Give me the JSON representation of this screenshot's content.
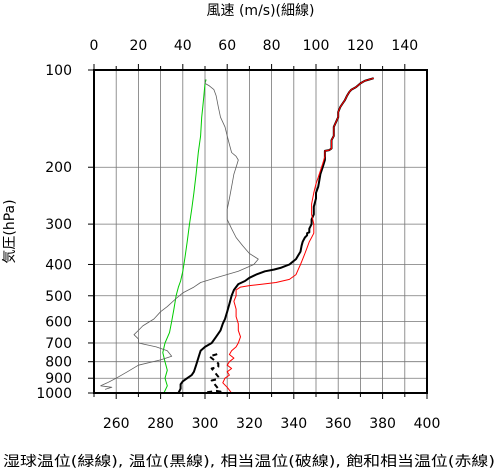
{
  "chart_data": {
    "type": "line",
    "title": "",
    "top_axis_label": "風速 (m/s)(細線)",
    "ylabel": "気圧(hPa)",
    "xlabel": "湿球温位(緑線), 温位(黒線), 相当温位(破線), 飽和相当温位(赤線)",
    "y_scale": "log",
    "y_inverted": true,
    "ylim": [
      1000,
      100
    ],
    "xlim": [
      250,
      400
    ],
    "top_xlim": [
      0,
      150
    ],
    "x_ticks": [
      260,
      280,
      300,
      320,
      340,
      360,
      380,
      400
    ],
    "top_x_ticks": [
      0,
      20,
      40,
      60,
      80,
      100,
      120,
      140
    ],
    "y_ticks": [
      100,
      200,
      300,
      400,
      500,
      600,
      700,
      800,
      900,
      1000
    ],
    "grid": true,
    "series": [
      {
        "name": "湿球温位",
        "color": "#00cc00",
        "axis": "bottom",
        "points": [
          [
            281.5,
            1000
          ],
          [
            283,
            950
          ],
          [
            282,
            900
          ],
          [
            283,
            850
          ],
          [
            282,
            800
          ],
          [
            281,
            750
          ],
          [
            282,
            700
          ],
          [
            284,
            650
          ],
          [
            285,
            600
          ],
          [
            286,
            550
          ],
          [
            287,
            500
          ],
          [
            288,
            470
          ],
          [
            289,
            450
          ],
          [
            290,
            420
          ],
          [
            291,
            380
          ],
          [
            292,
            340
          ],
          [
            293,
            300
          ],
          [
            294,
            270
          ],
          [
            295,
            240
          ],
          [
            296,
            210
          ],
          [
            297,
            180
          ],
          [
            298,
            160
          ],
          [
            298.5,
            140
          ],
          [
            299,
            130
          ],
          [
            299.5,
            120
          ],
          [
            300,
            110
          ],
          [
            300.5,
            107
          ]
        ]
      },
      {
        "name": "温位",
        "color": "#000000",
        "axis": "bottom",
        "points": [
          [
            288,
            1000
          ],
          [
            289,
            970
          ],
          [
            289,
            940
          ],
          [
            290,
            920
          ],
          [
            292,
            900
          ],
          [
            294,
            880
          ],
          [
            295,
            860
          ],
          [
            296,
            820
          ],
          [
            297,
            780
          ],
          [
            297.5,
            760
          ],
          [
            298,
            740
          ],
          [
            300,
            720
          ],
          [
            303,
            700
          ],
          [
            305,
            670
          ],
          [
            307,
            640
          ],
          [
            308,
            610
          ],
          [
            309,
            590
          ],
          [
            310,
            560
          ],
          [
            311,
            530
          ],
          [
            312,
            500
          ],
          [
            313,
            480
          ],
          [
            315,
            460
          ],
          [
            318,
            450
          ],
          [
            320,
            440
          ],
          [
            323,
            430
          ],
          [
            327,
            420
          ],
          [
            331,
            415
          ],
          [
            334,
            410
          ],
          [
            336,
            405
          ],
          [
            338,
            400
          ],
          [
            339,
            395
          ],
          [
            340,
            390
          ],
          [
            341,
            385
          ],
          [
            342,
            375
          ],
          [
            343,
            365
          ],
          [
            343.5,
            350
          ],
          [
            344,
            340
          ],
          [
            345,
            330
          ],
          [
            346,
            325
          ],
          [
            346,
            320
          ],
          [
            347,
            318
          ],
          [
            347,
            310
          ],
          [
            348,
            300
          ],
          [
            348,
            290
          ],
          [
            349,
            280
          ],
          [
            349,
            265
          ],
          [
            350,
            250
          ],
          [
            350,
            240
          ],
          [
            351,
            230
          ],
          [
            351.5,
            220
          ],
          [
            352,
            210
          ],
          [
            353,
            200
          ],
          [
            354,
            190
          ],
          [
            354,
            180
          ],
          [
            354,
            178
          ],
          [
            356,
            177
          ],
          [
            357,
            175
          ],
          [
            357,
            165
          ],
          [
            358,
            160
          ],
          [
            358,
            150
          ],
          [
            359,
            145
          ],
          [
            360,
            140
          ],
          [
            360,
            135
          ],
          [
            361,
            130
          ],
          [
            362,
            127
          ],
          [
            363,
            124
          ],
          [
            364,
            120
          ],
          [
            365,
            117
          ],
          [
            366,
            115
          ],
          [
            368,
            113
          ],
          [
            370,
            110
          ],
          [
            372,
            108
          ],
          [
            374,
            107
          ],
          [
            376,
            106
          ]
        ]
      },
      {
        "name": "相当温位",
        "color": "#000000",
        "axis": "bottom",
        "points": [
          [
            301,
            995
          ],
          [
            303,
            990
          ],
          [
            305,
            985
          ],
          [
            307,
            990
          ],
          [
            303,
            915
          ],
          [
            306,
            905
          ],
          [
            306,
            890
          ],
          [
            303,
            840
          ],
          [
            306,
            830
          ],
          [
            306,
            810
          ],
          [
            302,
            770
          ],
          [
            305,
            760
          ],
          [
            307,
            750
          ]
        ]
      },
      {
        "name": "飽和相当温位",
        "color": "#ff0000",
        "axis": "bottom",
        "points": [
          [
            312,
            1000
          ],
          [
            310,
            960
          ],
          [
            308,
            930
          ],
          [
            309,
            900
          ],
          [
            311,
            880
          ],
          [
            310,
            860
          ],
          [
            312,
            840
          ],
          [
            310,
            820
          ],
          [
            311,
            800
          ],
          [
            313,
            780
          ],
          [
            311,
            760
          ],
          [
            312,
            740
          ],
          [
            314,
            720
          ],
          [
            315,
            700
          ],
          [
            316,
            670
          ],
          [
            315,
            640
          ],
          [
            315,
            610
          ],
          [
            314,
            580
          ],
          [
            314,
            550
          ],
          [
            313,
            520
          ],
          [
            314,
            500
          ],
          [
            314,
            480
          ],
          [
            316,
            470
          ],
          [
            320,
            465
          ],
          [
            326,
            460
          ],
          [
            332,
            455
          ],
          [
            338,
            445
          ],
          [
            341,
            430
          ],
          [
            342,
            415
          ],
          [
            343,
            400
          ],
          [
            344,
            385
          ],
          [
            345,
            370
          ],
          [
            346,
            355
          ],
          [
            347,
            340
          ],
          [
            348,
            330
          ],
          [
            349,
            320
          ],
          [
            349,
            300
          ],
          [
            348,
            280
          ],
          [
            348,
            260
          ],
          [
            349,
            240
          ],
          [
            350,
            225
          ],
          [
            351,
            215
          ],
          [
            352,
            205
          ],
          [
            353,
            195
          ],
          [
            354,
            185
          ],
          [
            354,
            178
          ],
          [
            356,
            177
          ],
          [
            357,
            175
          ],
          [
            357,
            165
          ],
          [
            358,
            160
          ],
          [
            358,
            150
          ],
          [
            359,
            145
          ],
          [
            360,
            140
          ],
          [
            360,
            135
          ],
          [
            361,
            130
          ],
          [
            362,
            127
          ],
          [
            363,
            124
          ],
          [
            364,
            120
          ],
          [
            365,
            117
          ],
          [
            366,
            115
          ],
          [
            368,
            113
          ],
          [
            370,
            110
          ],
          [
            372,
            108
          ],
          [
            374,
            107
          ],
          [
            376,
            106
          ]
        ]
      },
      {
        "name": "風速",
        "color": "#606060",
        "axis": "top",
        "points": [
          [
            5,
            975
          ],
          [
            8,
            960
          ],
          [
            3,
            950
          ],
          [
            6,
            930
          ],
          [
            10,
            900
          ],
          [
            15,
            860
          ],
          [
            20,
            820
          ],
          [
            30,
            790
          ],
          [
            35,
            770
          ],
          [
            33,
            740
          ],
          [
            28,
            720
          ],
          [
            20,
            700
          ],
          [
            20,
            680
          ],
          [
            18,
            660
          ],
          [
            20,
            640
          ],
          [
            22,
            620
          ],
          [
            27,
            590
          ],
          [
            30,
            560
          ],
          [
            33,
            540
          ],
          [
            37,
            510
          ],
          [
            40,
            490
          ],
          [
            45,
            470
          ],
          [
            48,
            455
          ],
          [
            55,
            440
          ],
          [
            65,
            420
          ],
          [
            72,
            400
          ],
          [
            74,
            385
          ],
          [
            70,
            370
          ],
          [
            67,
            350
          ],
          [
            64,
            330
          ],
          [
            62,
            310
          ],
          [
            60,
            290
          ],
          [
            60,
            270
          ],
          [
            61,
            250
          ],
          [
            62,
            230
          ],
          [
            63,
            210
          ],
          [
            64,
            200
          ],
          [
            65,
            190
          ],
          [
            64,
            185
          ],
          [
            62,
            180
          ],
          [
            61,
            170
          ],
          [
            60,
            160
          ],
          [
            59,
            150
          ],
          [
            57,
            140
          ],
          [
            56,
            130
          ],
          [
            55,
            120
          ],
          [
            54,
            115
          ],
          [
            52,
            112
          ],
          [
            50,
            110
          ],
          [
            50,
            107
          ]
        ]
      }
    ]
  }
}
